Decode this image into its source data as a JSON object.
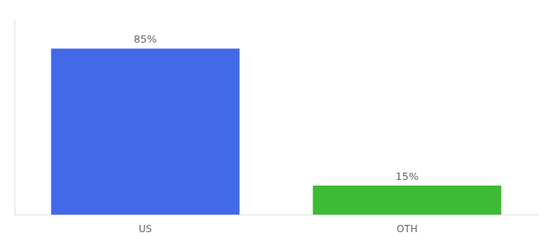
{
  "chart_data": {
    "type": "bar",
    "categories": [
      "US",
      "OTH"
    ],
    "values": [
      85,
      15
    ],
    "value_labels": [
      "85%",
      "15%"
    ],
    "colors": [
      "#4169e8",
      "#3dbb35"
    ],
    "ylim": [
      0,
      100
    ],
    "data_labels": true,
    "tick_labels": "x",
    "grid": false
  }
}
